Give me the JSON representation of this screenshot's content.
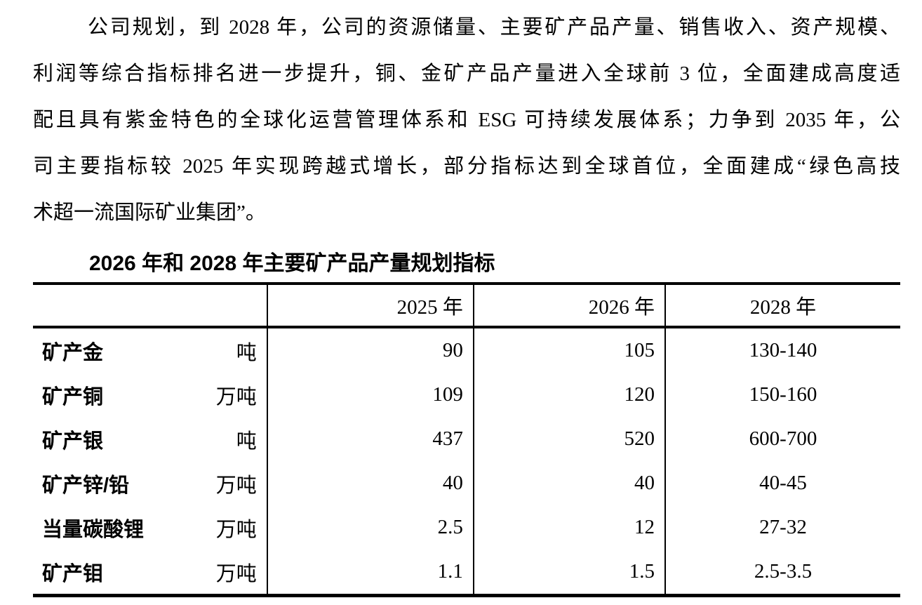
{
  "page": {
    "background": "#ffffff",
    "text_color": "#000000"
  },
  "paragraph": {
    "lines": [
      "公司规划，到 2028 年，公司的资源储量、主要矿产品产量、销售收入、资产规模、",
      "利润等综合指标排名进一步提升，铜、金矿产品产量进入全球前 3 位，全面建成高度适",
      "配且具有紫金特色的全球化运营管理体系和 ESG 可持续发展体系；力争到 2035 年，公",
      "司主要指标较 2025 年实现跨越式增长，部分指标达到全球首位，全面建成“绿色高技",
      "术超一流国际矿业集团”。"
    ]
  },
  "table": {
    "title": "2026 年和 2028 年主要矿产品产量规划指标",
    "header": [
      "",
      "2025 年",
      "2026 年",
      "2028 年"
    ],
    "rows": [
      {
        "label": "矿产金",
        "unit": "吨",
        "y2025": "90",
        "y2026": "105",
        "y2028": "130-140"
      },
      {
        "label": "矿产铜",
        "unit": "万吨",
        "y2025": "109",
        "y2026": "120",
        "y2028": "150-160"
      },
      {
        "label": "矿产银",
        "unit": "吨",
        "y2025": "437",
        "y2026": "520",
        "y2028": "600-700"
      },
      {
        "label": "矿产锌/铅",
        "unit": "万吨",
        "y2025": "40",
        "y2026": "40",
        "y2028": "40-45"
      },
      {
        "label": "当量碳酸锂",
        "unit": "万吨",
        "y2025": "2.5",
        "y2026": "12",
        "y2028": "27-32"
      },
      {
        "label": "矿产钼",
        "unit": "万吨",
        "y2025": "1.1",
        "y2026": "1.5",
        "y2028": "2.5-3.5"
      }
    ]
  }
}
